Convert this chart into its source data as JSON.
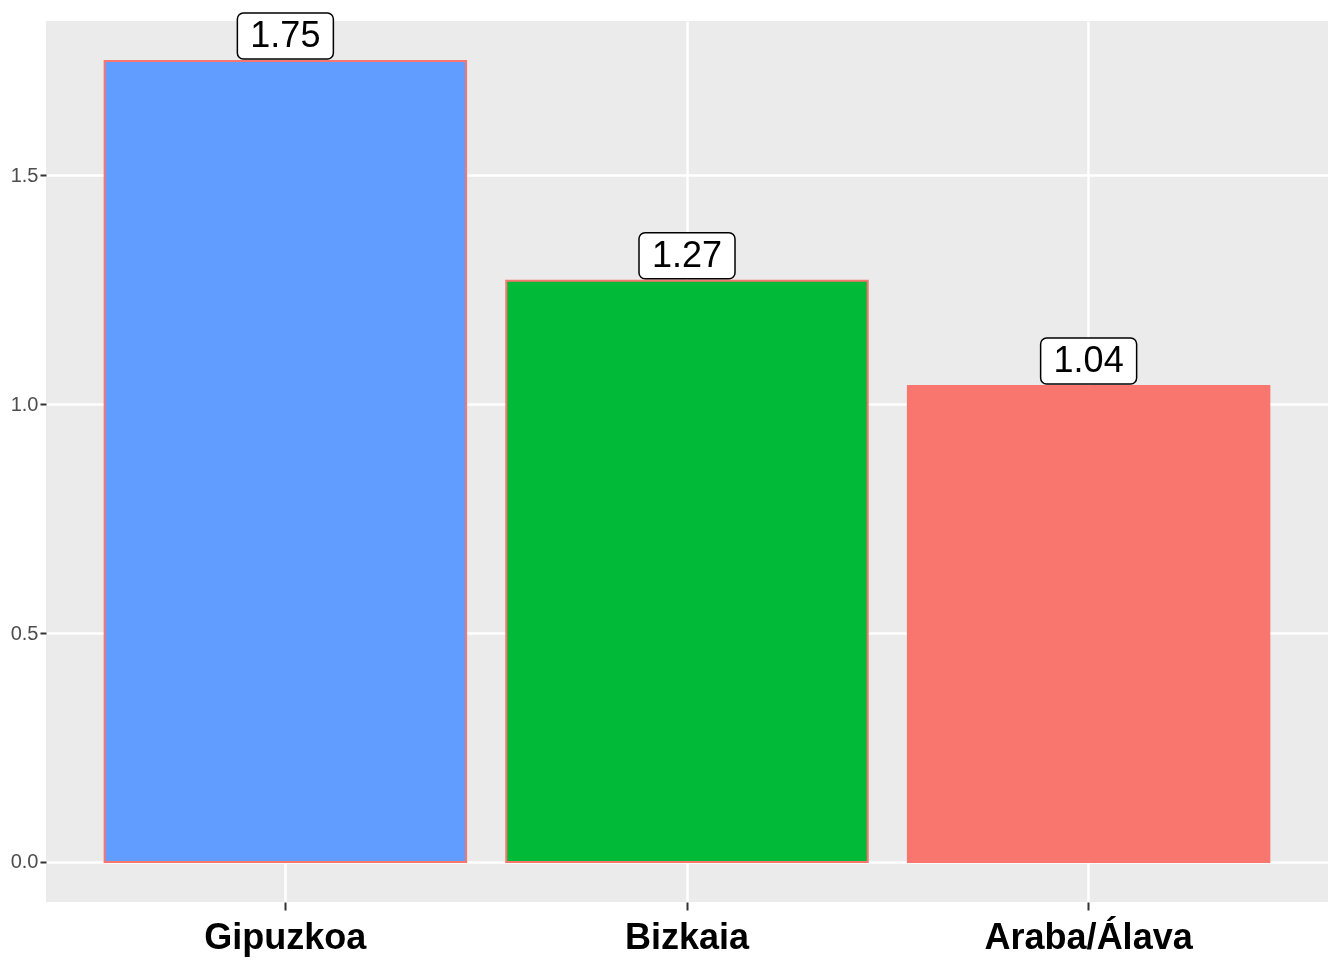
{
  "chart_data": {
    "type": "bar",
    "categories": [
      "Gipuzkoa",
      "Bizkaia",
      "Araba/Álava"
    ],
    "values": [
      1.75,
      1.27,
      1.04
    ],
    "colors": [
      "#619cff",
      "#00ba38",
      "#f8766d"
    ],
    "ylim": [
      -0.0875,
      1.8375
    ],
    "yticks": [
      {
        "value": 0,
        "label": "0.0"
      },
      {
        "value": 0.5,
        "label": "0.5"
      },
      {
        "value": 1,
        "label": "1.0"
      },
      {
        "value": 1.5,
        "label": "1.5"
      }
    ],
    "grid": true,
    "data_labels": true
  }
}
